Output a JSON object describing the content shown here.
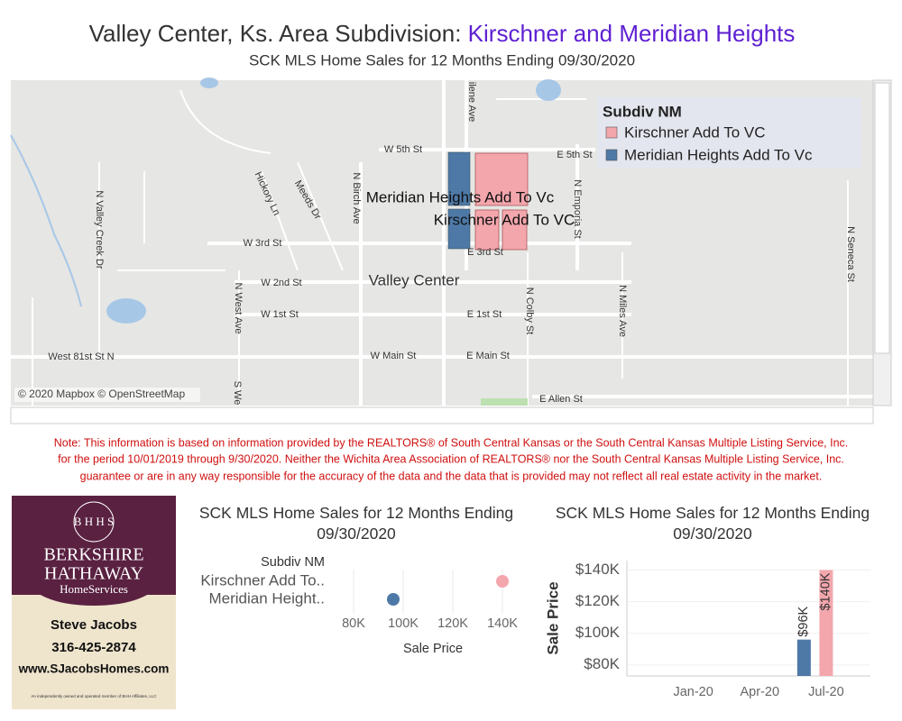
{
  "header": {
    "title": "Valley Center, Ks. Area Subdivision: ",
    "title_highlight": "Kirschner and Meridian Heights",
    "subtitle": "SCK MLS Home Sales for 12 Months Ending  09/30/2020"
  },
  "map": {
    "legend_title": "Subdiv NM",
    "legend": [
      {
        "name": "Kirschner Add To VC",
        "color": "#f4a6ad"
      },
      {
        "name": "Meridian Heights Add To Vc",
        "color": "#4e79a7"
      }
    ],
    "labels": [
      "W 5th St",
      "E 5th St",
      "W 3rd St",
      "E 3rd St",
      "W 2nd St",
      "W 1st St",
      "E 1st St",
      "West 81st St N",
      "W Main St",
      "E Main St",
      "E Allen St",
      "Valley Center",
      "Hickory Ln",
      "Meeds Dr",
      "N Birch Ave",
      "N Valley Creek Dr",
      "N West Ave",
      "N Colby St",
      "N Miles Ave",
      "N Seneca St",
      "N Emporia St",
      "ilene Ave",
      "S We"
    ],
    "overlay": [
      "Meridian Heights Add To Vc",
      "Kirschner Add To VC"
    ],
    "attribution": "© 2020 Mapbox © OpenStreetMap"
  },
  "note": [
    "Note: This information is based on information provided by the REALTORS® of South Central Kansas or the South Central Kansas Multiple Listing Service, Inc.",
    "for the period 10/01/2019 through 9/30/2020. Neither the Wichita Area Association of REALTORS® nor the South Central Kansas Multiple Listing Service, Inc.",
    "guarantee or are in any way responsible for the accuracy of the data and the data that is provided may not reflect all real estate activity in the market."
  ],
  "agent": {
    "brand": "BERKSHIRE",
    "brand2": "HATHAWAY",
    "sub": "HomeServices",
    "name": "Steve Jacobs",
    "phone": "316-425-2874",
    "web": "www.SJacobsHomes.com",
    "fine": "An independently owned and operated member of BHH Affiliates, LLC"
  },
  "chart_data": [
    {
      "type": "dot",
      "title": "SCK MLS Home Sales for 12 Months Ending 09/30/2020",
      "legend_title": "Subdiv NM",
      "categories": [
        "Kirschner Add To..",
        "Meridian Height.."
      ],
      "values": [
        140000,
        96000
      ],
      "colors": [
        "#f4a6ad",
        "#4e79a7"
      ],
      "xlabel": "Sale Price",
      "xlim": [
        72000,
        152000
      ],
      "xticks": [
        {
          "value": 80000,
          "label": "80K"
        },
        {
          "value": 100000,
          "label": "100K"
        },
        {
          "value": 120000,
          "label": "120K"
        },
        {
          "value": 140000,
          "label": "140K"
        }
      ],
      "grid": true
    },
    {
      "type": "bar",
      "title": "SCK MLS Home Sales for 12 Months Ending 09/30/2020",
      "ylabel": "Sale Price",
      "x": [
        "2020-06",
        "2020-07"
      ],
      "series": [
        {
          "color": "#4e79a7",
          "values": [
            96000,
            null
          ],
          "value_labels": [
            "$96K",
            null
          ]
        },
        {
          "color": "#f4a6ad",
          "values": [
            null,
            140000
          ],
          "value_labels": [
            null,
            "$140K"
          ]
        }
      ],
      "xlim": [
        "2019-10",
        "2020-09"
      ],
      "xticks": [
        {
          "value": "2020-01",
          "label": "Jan-20"
        },
        {
          "value": "2020-04",
          "label": "Apr-20"
        },
        {
          "value": "2020-07",
          "label": "Jul-20"
        }
      ],
      "ylim": [
        73000,
        146000
      ],
      "yticks": [
        {
          "value": 80000,
          "label": "$80K"
        },
        {
          "value": 100000,
          "label": "$100K"
        },
        {
          "value": 120000,
          "label": "$120K"
        },
        {
          "value": 140000,
          "label": "$140K"
        }
      ],
      "grid": true
    }
  ]
}
